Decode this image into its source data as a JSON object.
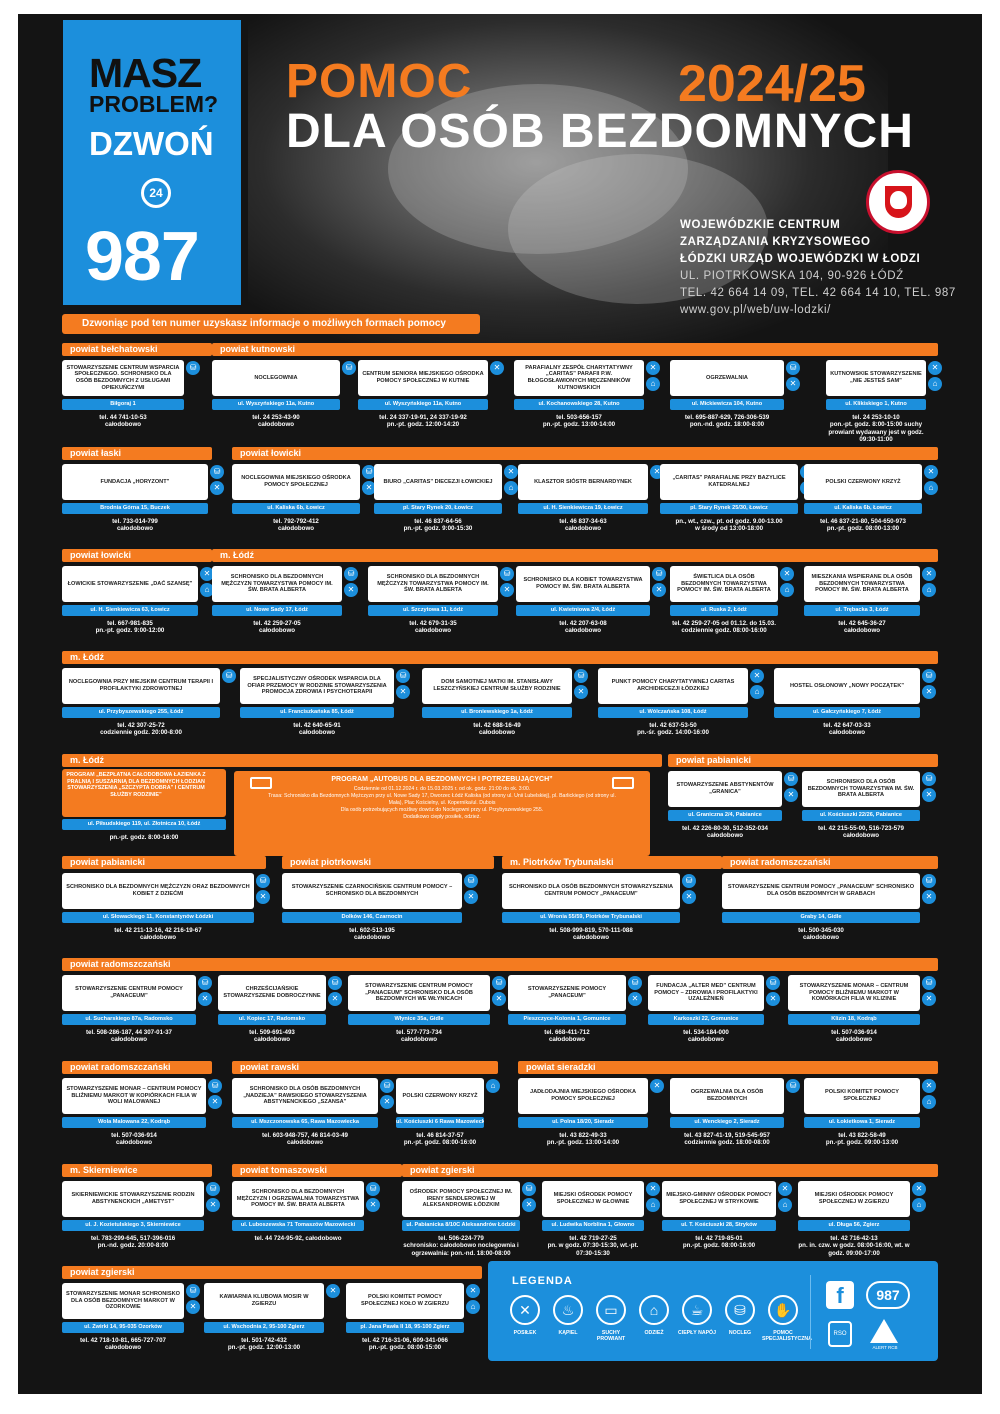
{
  "header": {
    "masz": "MASZ",
    "problem": "PROBLEM?",
    "dzwon": "DZWOŃ",
    "hours": "24",
    "number": "987",
    "title_line1": "POMOC",
    "title_line2": "DLA OSÓB BEZDOMNYCH",
    "year": "2024/25",
    "org_line1": "WOJEWÓDZKIE CENTRUM",
    "org_line2": "ZARZĄDZANIA KRYZYSOWEGO",
    "org_line3": "ŁÓDZKI URZĄD WOJEWÓDZKI W ŁODZI",
    "address": "UL. PIOTRKOWSKA 104, 90-926 ŁÓDŹ",
    "phones": "TEL. 42 664 14 09, TEL. 42 664 14 10, TEL. 987",
    "www": "www.gov.pl/web/uw-lodzki/",
    "intro": "Dzwoniąc pod ten numer uzyskasz informacje o możliwych formach pomocy"
  },
  "sections": [
    {
      "label": "powiat bełchatowski"
    },
    {
      "label": "powiat kutnowski"
    },
    {
      "label": "powiat łaski"
    },
    {
      "label": "powiat łowicki"
    },
    {
      "label": "powiat łowicki"
    },
    {
      "label": "m. Łódź"
    },
    {
      "label": "m. Łódź"
    },
    {
      "label": "m. Łódź"
    },
    {
      "label": "powiat pabianicki"
    },
    {
      "label": "powiat pabianicki"
    },
    {
      "label": "powiat piotrkowski"
    },
    {
      "label": "m. Piotrków Trybunalski"
    },
    {
      "label": "powiat radomszczański"
    },
    {
      "label": "powiat radomszczański"
    },
    {
      "label": "powiat radomszczański"
    },
    {
      "label": "powiat rawski"
    },
    {
      "label": "powiat sieradzki"
    },
    {
      "label": "m. Skierniewice"
    },
    {
      "label": "powiat tomaszowski"
    },
    {
      "label": "powiat zgierski"
    },
    {
      "label": "powiat zgierski"
    }
  ],
  "cards": [
    {
      "name": "STOWARZYSZENIE CENTRUM WSPARCIA SPOŁECZNEGO. SCHRONISKO DLA OSÓB BEZDOMNYCH Z USŁUGAMI OPIEKUŃCZYMI",
      "addr": "Biłgoraj 1",
      "tel": "tel. 44 741-10-53",
      "hours": "całodobowo",
      "icons": [
        "bed"
      ]
    },
    {
      "name": "NOCLEGOWNIA",
      "addr": "ul. Wyszyńskiego 11a, Kutno",
      "tel": "tel. 24 253-43-90",
      "hours": "całodobowo",
      "icons": [
        "bed"
      ]
    },
    {
      "name": "CENTRUM SENIORA MIEJSKIEGO OŚRODKA POMOCY SPOŁECZNEJ W KUTNIE",
      "addr": "ul. Wyszyńskiego 11a, Kutno",
      "tel": "tel. 24 337-19-91, 24 337-19-92",
      "hours": "pn.-pt. godz. 12:00-14:20",
      "icons": [
        "x"
      ]
    },
    {
      "name": "PARAFIALNY ZESPÓŁ CHARYTATYWNY „CARITAS” PARAFII P.W. BŁOGOSŁAWIONYCH MĘCZENNIKÓW KUTNOWSKICH",
      "addr": "ul. Kochanowskiego 28, Kutno",
      "tel": "tel. 503-656-157",
      "hours": "pn.-pt. godz. 13:00-14:00",
      "icons": [
        "x",
        "shirt"
      ]
    },
    {
      "name": "OGRZEWALNIA",
      "addr": "ul. Mickiewicza 104, Kutno",
      "tel": "tel. 695-887-629, 726-306-539",
      "hours": "pon.-nd. godz. 18:00-8:00",
      "icons": [
        "bed",
        "x"
      ]
    },
    {
      "name": "KUTNOWSKIE STOWARZYSZENIE „NIE JESTEŚ SAM”",
      "addr": "ul. Klikiskiego 1, Kutno",
      "tel": "tel. 24 253-10-10",
      "hours": "pon.-pt. godz. 8:00-15:00 suchy prowiant wydawany jest w godz. 09:30-11:00",
      "icons": [
        "x",
        "shirt"
      ]
    },
    {
      "name": "FUNDACJA „HORYZONT”",
      "addr": "Brodnia Górna 15, Buczek",
      "tel": "tel. 733-014-799",
      "hours": "całodobowo",
      "icons": [
        "bed",
        "x"
      ]
    },
    {
      "name": "NOCLEGOWNIA MIEJSKIEGO OŚRODKA POMOCY SPOŁECZNEJ",
      "addr": "ul. Kaliska 6b, Łowicz",
      "tel": "tel. 792-792-412",
      "hours": "całodobowo",
      "icons": [
        "bed",
        "x"
      ]
    },
    {
      "name": "BIURO „CARITAS” DIECEZJI ŁOWICKIEJ",
      "addr": "pl. Stary Rynek 20, Łowicz",
      "tel": "tel. 46 837-64-56",
      "hours": "pn.-pt. godz. 9:00-15:30",
      "icons": [
        "x",
        "shirt"
      ]
    },
    {
      "name": "KLASZTOR SIÓSTR BERNARDYNEK",
      "addr": "ul. H. Sienkiewicza 19, Łowicz",
      "tel": "tel. 46 837-34-63",
      "hours": "całodobowo",
      "icons": [
        "x"
      ]
    },
    {
      "name": "„CARITAS” PARAFIALNE PRZY BAZYLICE KATEDRALNEJ",
      "addr": "pl. Stary Rynek 25/30, Łowicz",
      "tel": "pn., wt., czw., pt. od godz. 9.00-13.00",
      "hours": "w środy od 13:00-18:00",
      "icons": [
        "x",
        "shirt"
      ]
    },
    {
      "name": "POLSKI CZERWONY KRZYŻ",
      "addr": "ul. Kaliska 6b, Łowicz",
      "tel": "tel. 46 837-21-80, 504-650-973",
      "hours": "pn.-pt. godz. 08:00-13:00",
      "icons": [
        "x",
        "shirt"
      ]
    },
    {
      "name": "ŁOWICKIE STOWARZYSZENIE „DAĆ SZANSĘ”",
      "addr": "ul. H. Sienkiewicza 63, Łowicz",
      "tel": "tel. 667-981-835",
      "hours": "pn.-pt. godz. 9:00-12:00",
      "icons": [
        "x",
        "shirt"
      ]
    },
    {
      "name": "SCHRONISKO DLA BEZDOMNYCH MĘŻCZYZN TOWARZYSTWA POMOCY IM. ŚW. BRATA ALBERTA",
      "addr": "ul. Nowe Sady 17, Łódź",
      "tel": "tel. 42 259-27-05",
      "hours": "całodobowo",
      "icons": [
        "bed",
        "x"
      ]
    },
    {
      "name": "SCHRONISKO DLA BEZDOMNYCH MĘŻCZYZN TOWARZYSTWA POMOCY IM. ŚW. BRATA ALBERTA",
      "addr": "ul. Szczytowa 11, Łódź",
      "tel": "tel. 42 679-31-35",
      "hours": "całodobowo",
      "icons": [
        "bed",
        "x"
      ]
    },
    {
      "name": "SCHRONISKO DLA KOBIET TOWARZYSTWA POMOCY IM. ŚW. BRATA ALBERTA",
      "addr": "ul. Kwietniowa 2/4, Łódź",
      "tel": "tel. 42 207-63-08",
      "hours": "całodobowo",
      "icons": [
        "bed",
        "x"
      ]
    },
    {
      "name": "ŚWIETLICA DLA OSÓB BEZDOMNYCH TOWARZYSTWA POMOCY IM. ŚW. BRATA ALBERTA",
      "addr": "ul. Ruska 2, Łódź",
      "tel": "tel. 42 259-27-05 od 01.12. do 15.03.",
      "hours": "codziennie godz. 08:00-16:00",
      "icons": [
        "x",
        "shirt"
      ]
    },
    {
      "name": "MIESZKANIA WSPIERANE DLA OSÓB BEZDOMNYCH TOWARZYSTWA POMOCY IM. ŚW. BRATA ALBERTA",
      "addr": "ul. Trębacka 3, Łódź",
      "tel": "tel. 42 645-36-27",
      "hours": "całodobowo",
      "icons": [
        "x",
        "shirt"
      ]
    },
    {
      "name": "NOCLEGOWNIA PRZY MIEJSKIM CENTRUM TERAPII I PROFILAKTYKI ZDROWOTNEJ",
      "addr": "ul. Przybyszewskiego 255, Łódź",
      "tel": "tel. 42 307-25-72",
      "hours": "codziennie godz. 20:00-8:00",
      "icons": [
        "bed"
      ]
    },
    {
      "name": "SPECJALISTYCZNY OŚRODEK WSPARCIA DLA OFIAR PRZEMOCY W RODZINIE STOWARZYSZENIA PROMOCJA ZDROWIA I PSYCHOTERAPII",
      "addr": "ul. Franciszkańska 85, Łódź",
      "tel": "tel. 42 640-65-91",
      "hours": "całodobowo",
      "icons": [
        "bed",
        "x"
      ]
    },
    {
      "name": "DOM SAMOTNEJ MATKI IM. STANISŁAWY LESZCZYŃSKIEJ CENTRUM SŁUŻBY RODZINIE",
      "addr": "ul. Broniewskiego 1a, Łódź",
      "tel": "tel. 42 688-16-49",
      "hours": "całodobowo",
      "icons": [
        "bed",
        "x"
      ]
    },
    {
      "name": "PUNKT POMOCY CHARYTATYWNEJ CARITAS ARCHIDIECEZJI ŁÓDZKIEJ",
      "addr": "ul. Wólczańska 108, Łódź",
      "tel": "tel. 42 637-53-50",
      "hours": "pn.-śr. godz. 14:00-16:00",
      "icons": [
        "x",
        "shirt"
      ]
    },
    {
      "name": "HOSTEL OSŁONOWY „NOWY POCZĄTEK”",
      "addr": "ul. Gałczyńskiego 7, Łódź",
      "tel": "tel. 42 647-03-33",
      "hours": "całodobowo",
      "icons": [
        "bed",
        "x"
      ]
    },
    {
      "name": "STOWARZYSZENIE ABSTYNENTÓW „GRANICA”",
      "addr": "ul. Graniczna 2/4, Pabianice",
      "tel": "tel. 42 226-80-30, 512-352-034",
      "hours": "całodobowo",
      "icons": [
        "bed",
        "x"
      ]
    },
    {
      "name": "SCHRONISKO DLA OSÓB BEZDOMNYCH TOWARZYSTWA IM. ŚW. BRATA ALBERTA",
      "addr": "ul. Kościuszki 22/26, Pabianice",
      "tel": "tel. 42 215-55-00, 516-723-579",
      "hours": "całodobowo",
      "icons": [
        "bed",
        "x"
      ]
    },
    {
      "name": "SCHRONISKO DLA BEZDOMNYCH MĘŻCZYZN ORAZ BEZDOMNYCH KOBIET Z DZIEĆMI",
      "addr": "ul. Słowackiego 11, Konstantynów Łódzki",
      "tel": "tel. 42 211-13-16, 42 216-19-67",
      "hours": "całodobowo",
      "icons": [
        "bed",
        "x"
      ]
    },
    {
      "name": "STOWARZYSZENIE CZARNOCIŃSKIE CENTRUM POMOCY – SCHRONISKO DLA BEZDOMNYCH",
      "addr": "Dolków 146, Czarnocin",
      "tel": "tel. 602-513-195",
      "hours": "całodobowo",
      "icons": [
        "bed",
        "x"
      ]
    },
    {
      "name": "SCHRONISKO DLA OSÓB BEZDOMNYCH STOWARZYSZENIA CENTRUM POMOCY „PANACEUM”",
      "addr": "ul. Wronia 55/59, Piotrków Trybunalski",
      "tel": "tel. 508-999-819, 570-111-088",
      "hours": "całodobowo",
      "icons": [
        "bed",
        "x"
      ]
    },
    {
      "name": "STOWARZYSZENIE CENTRUM POMOCY „PANACEUM” SCHRONISKO DLA OSÓB BEZDOMNYCH W GRABACH",
      "addr": "Graby 14, Gidle",
      "tel": "tel. 500-345-030",
      "hours": "całodobowo",
      "icons": [
        "bed",
        "x"
      ]
    },
    {
      "name": "STOWARZYSZENIE CENTRUM POMOCY „PANACEUM”",
      "addr": "ul. Sucharskiego 87a, Radomsko",
      "tel": "tel. 508-286-187, 44 307-01-37",
      "hours": "całodobowo",
      "icons": [
        "bed",
        "x"
      ]
    },
    {
      "name": "CHRZEŚCIJAŃSKIE STOWARZYSZENIE DOBROCZYNNE",
      "addr": "ul. Kopiec 17, Radomsko",
      "tel": "tel. 509-691-493",
      "hours": "całodobowo",
      "icons": [
        "bed",
        "x"
      ]
    },
    {
      "name": "STOWARZYSZENIE CENTRUM POMOCY „PANACEUM” SCHRONISKO DLA OSÓB BEZDOMNYCH WE WŁYNICACH",
      "addr": "Włynice 35a, Gidle",
      "tel": "tel. 577-773-734",
      "hours": "całodobowo",
      "icons": [
        "bed",
        "x"
      ]
    },
    {
      "name": "STOWARZYSZENIE POMOCY „PANACEUM”",
      "addr": "Pieszczyce-Kolonia 1, Gomunice",
      "tel": "tel. 668-411-712",
      "hours": "całodobowo",
      "icons": [
        "bed",
        "x"
      ]
    },
    {
      "name": "Fundacja „ALTER MED” Centrum Pomocy – Zdrowia i Profilaktyki Uzależnień",
      "addr": "Karkoszki 22, Gomunice",
      "tel": "tel. 534-184-000",
      "hours": "całodobowo",
      "icons": [
        "bed",
        "x"
      ]
    },
    {
      "name": "STOWARZYSZENIE MONAR – CENTRUM POMOCY BLIŹNIEMU MARKOT W KOMÓRKACH FILIA W KLIZINIE",
      "addr": "Klizin 18, Kodrąb",
      "tel": "tel. 507-036-914",
      "hours": "całodobowo",
      "icons": [
        "bed",
        "x"
      ]
    },
    {
      "name": "STOWARZYSZENIE MONAR – CENTRUM POMOCY BLIŹNIEMU MARKOT W KOPIÓRKACH FILIA W WOLI MALOWANEJ",
      "addr": "Wola Malowana 22, Kodrąb",
      "tel": "tel. 507-036-914",
      "hours": "całodobowo",
      "icons": [
        "bed",
        "x"
      ]
    },
    {
      "name": "SCHRONISKO DLA OSÓB BEZDOMNYCH „NADZIEJA” RAWSKIEGO STOWARZYSZENIA ABSTYNENCKIEGO „SZANSA”",
      "addr": "ul. Mszczonowska 65, Rawa Mazowiecka",
      "tel": "tel. 603-948-757, 46 814-03-49",
      "hours": "całodobowo",
      "icons": [
        "bed",
        "x"
      ]
    },
    {
      "name": "POLSKI CZERWONY KRZYŻ",
      "addr": "ul. Kościuszki 6 Rawa Mazowiecka",
      "tel": "tel. 46 814-37-57",
      "hours": "pn.-pt. godz. 08:00-16:00",
      "icons": [
        "shirt"
      ]
    },
    {
      "name": "JADŁODAJNIA MIEJSKIEGO OŚRODKA POMOCY SPOŁECZNEJ",
      "addr": "ul. Polna 18/20, Sieradz",
      "tel": "tel. 43 822-49-33",
      "hours": "pn.-pt. godz. 13:00-14:00",
      "icons": [
        "x"
      ]
    },
    {
      "name": "OGRZEWALNIA DLA OSÓB BEZDOMNYCH",
      "addr": "ul. Wenckiego 2, Sieradz",
      "tel": "tel. 43 827-41-19, 519-545-957",
      "hours": "codziennie godz. 18:00-08:00",
      "icons": [
        "bed"
      ]
    },
    {
      "name": "POLSKI KOMITET POMOCY SPOŁECZNEJ",
      "addr": "ul. Łokietkowa 1, Sieradz",
      "tel": "tel. 43 822-58-49",
      "hours": "pn.-pt. godz. 09:00-13:00",
      "icons": [
        "x",
        "shirt"
      ]
    },
    {
      "name": "SKIERNIEWICKIE STOWARZYSZENIE RODZIN ABSTYNENCKICH „AMETYST”",
      "addr": "ul. J. Kozietulskiego 3, Skierniewice",
      "tel": "tel. 783-299-645, 517-396-016",
      "hours": "pn.-nd. godz. 20:00-8:00",
      "icons": [
        "bed",
        "x"
      ]
    },
    {
      "name": "SCHRONISKO DLA BEZDOMNYCH MĘŻCZYZN I OGRZEWALNIA TOWARZYSTWA POMOCY IM. ŚW. BRATA ALBERTA",
      "addr": "ul. Luboszewska 71 Tomaszów Mazowiecki",
      "tel": "tel. 44 724-95-92, całodobowo",
      "hours": "",
      "icons": [
        "bed",
        "x"
      ]
    },
    {
      "name": "OŚRODEK POMOCY SPOŁECZNEJ IM. IRENY SENDLEROWEJ W ALEKSANDROWIE ŁÓDZKIM",
      "addr": "ul. Pabianicka 8/10C Aleksandrów Łódzki",
      "tel": "tel. 506-224-779",
      "hours": "schronisko: całodobowo noclegownia i ogrzewalnia: pon.-nd. 18:00-08:00",
      "icons": [
        "bed",
        "x"
      ]
    },
    {
      "name": "MIEJSKI OŚRODEK POMOCY SPOŁECZNEJ W GŁOWNIE",
      "addr": "ul. Ludwika Norblina 1, Głowno",
      "tel": "tel. 42 719-27-25",
      "hours": "pn. w godz. 07:30-15:30, wt.-pt. 07:30-15:30",
      "icons": [
        "x",
        "shirt"
      ]
    },
    {
      "name": "MIEJSKO-GMINNY OŚRODEK POMOCY SPOŁECZNEJ W STRYKOWIE",
      "addr": "ul. T. Kościuszki 28, Stryków",
      "tel": "tel. 42 719-85-01",
      "hours": "pn.-pt. godz. 08:00-16:00",
      "icons": [
        "x",
        "shirt"
      ]
    },
    {
      "name": "MIEJSKI OŚRODEK POMOCY SPOŁECZNEJ W ZGIERZU",
      "addr": "ul. Długa 56, Zgierz",
      "tel": "tel. 42 716-42-13",
      "hours": "pn. in. czw. w godz. 08:00-16:00, wt. w godz. 09:00-17:00",
      "icons": [
        "x",
        "shirt"
      ]
    },
    {
      "name": "STOWARZYSZENIE MONAR SCHRONISKO DLA OSÓB BEZDOMNYCH MARKOT W OZORKOWIE",
      "addr": "ul. Zwirki 14, 95-035 Ozorków",
      "tel": "tel. 42 718-10-81, 665-727-707",
      "hours": "całodobowo",
      "icons": [
        "bed",
        "x"
      ]
    },
    {
      "name": "KAWIARNIA KLUBOWA MOSIR W ZGIERZU",
      "addr": "ul. Wschodnia 2, 95-100 Zgierz",
      "tel": "tel. 501-742-432",
      "hours": "pn.-pt. godz. 12:00-13:00",
      "icons": [
        "x"
      ]
    },
    {
      "name": "POLSKI KOMITET POMOCY SPOŁECZNEJ KOŁO W ZGIERZU",
      "addr": "pl. Jana Pawła II 18, 95-100 Zgierz",
      "tel": "tel. 42 716-31-06, 609-341-066",
      "hours": "pn.-pt. godz. 08:00-15:00",
      "icons": [
        "x",
        "shirt"
      ]
    }
  ],
  "special": {
    "lodz_program": "PROGRAM „BEZPŁATNA CAŁODOBOWA ŁAZIENKA Z PRALNIĄ I SUSZARNIĄ DLA BEZDOMNYCH ŁODZIAN STOWARZYSZENIA „SZCZYPTA DOBRA” I CENTRUM SŁUŻBY RODZINIE”",
    "lodz_program_addr": "ul. Piłsudskiego 119, ul. Złotnicza 10, Łódź",
    "lodz_program_hours": "pn.-pt. godz. 8:00-16:00",
    "bus_title": "PROGRAM „AUTOBUS DLA BEZDOMNYCH I POTRZEBUJĄCYCH”",
    "bus_line1": "Codziennie od 01.12.2024 r. do 15.03.2025 r. od ok. godz. 21:00 do ok. 3:00.",
    "bus_line2": "Trasa: Schronisko dla Bezdomnych Mężczyzn przy ul. Nowe Sady 17, Dworzec Łódź Kaliska (od strony ul. Unii Lubelskiej), pl. Barlickiego (od strony ul. Mała), Plac Kościelny, ul. Kopernika/ul. Dubois",
    "bus_line3": "Dla osób potrzebujących możliwy dowóz do Noclegowni przy ul. Przybyszewskiego 255.",
    "bus_line4": "Dodatkowo ciepły posiłek, odzież."
  },
  "legend": {
    "title": "LEGENDA",
    "items": [
      {
        "label": "POSIŁEK",
        "icon": "cutlery-icon"
      },
      {
        "label": "KĄPIEL",
        "icon": "bath-icon"
      },
      {
        "label": "SUCHY PROWIANT",
        "icon": "dry-food-icon"
      },
      {
        "label": "ODZIEŻ",
        "icon": "shirt-icon"
      },
      {
        "label": "CIEPŁY NAPÓJ",
        "icon": "cup-icon"
      },
      {
        "label": "NOCLEG",
        "icon": "bed-icon"
      },
      {
        "label": "POMOC SPECJALISTYCZNA",
        "icon": "handshake-icon"
      }
    ],
    "number": "987",
    "rso": "RSO",
    "alert": "ALERT RCB"
  },
  "colors": {
    "orange": "#f47b20",
    "blue": "#1c8fdc",
    "background": "#141414"
  }
}
